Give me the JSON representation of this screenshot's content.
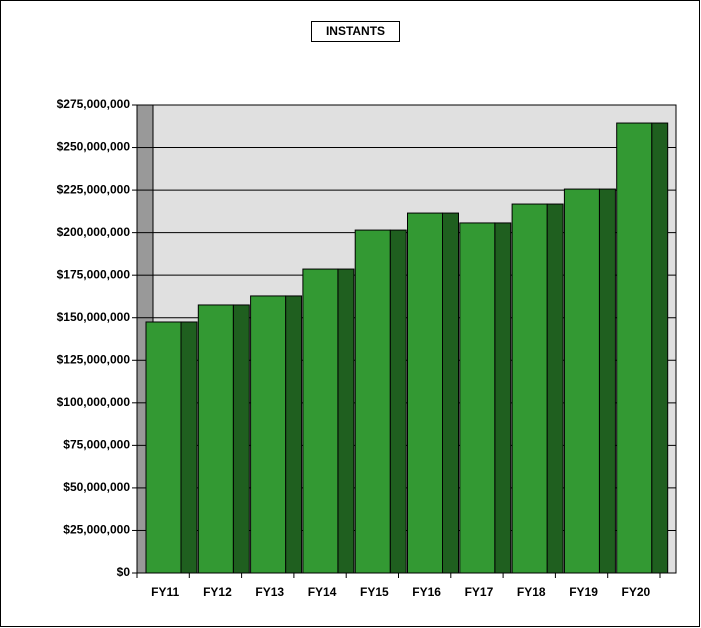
{
  "chart_data": {
    "type": "bar",
    "title": "INSTANTS",
    "categories": [
      "FY11",
      "FY12",
      "FY13",
      "FY14",
      "FY15",
      "FY16",
      "FY17",
      "FY18",
      "FY19",
      "FY20"
    ],
    "values": [
      147500000,
      157500000,
      162800000,
      178600000,
      201500000,
      211500000,
      205700000,
      216800000,
      225600000,
      264400000
    ],
    "color": "#339933",
    "ylim": [
      0,
      275000000
    ],
    "yticks": [
      {
        "value": 0,
        "label": "$0"
      },
      {
        "value": 25000000,
        "label": "$25,000,000"
      },
      {
        "value": 50000000,
        "label": "$50,000,000"
      },
      {
        "value": 75000000,
        "label": "$75,000,000"
      },
      {
        "value": 100000000,
        "label": "$100,000,000"
      },
      {
        "value": 125000000,
        "label": "$125,000,000"
      },
      {
        "value": 150000000,
        "label": "$150,000,000"
      },
      {
        "value": 175000000,
        "label": "$175,000,000"
      },
      {
        "value": 200000000,
        "label": "$200,000,000"
      },
      {
        "value": 225000000,
        "label": "$225,000,000"
      },
      {
        "value": 250000000,
        "label": "$250,000,000"
      },
      {
        "value": 275000000,
        "label": "$275,000,000"
      }
    ],
    "grid": true
  }
}
